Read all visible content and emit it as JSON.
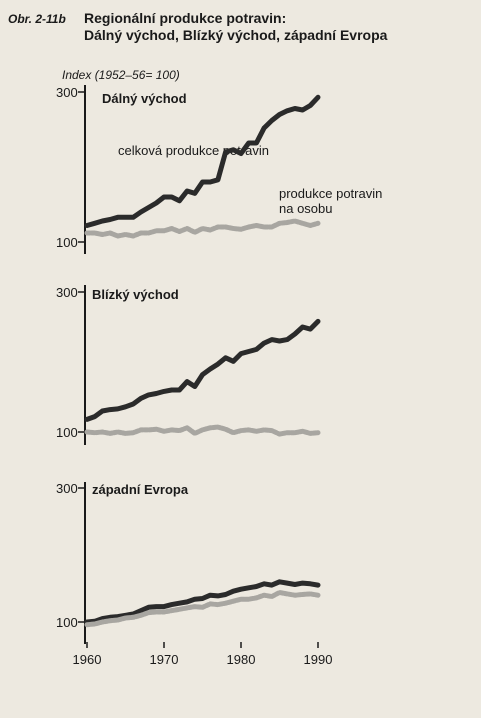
{
  "figure": {
    "label": "Obr. 2-11b",
    "title_line1": "Regionální produkce potravin:",
    "title_line2": "Dálný východ, Blízký východ, západní Evropa"
  },
  "chart_data": {
    "type": "line",
    "ylabel": "Index (1952–56= 100)",
    "x_ticks": [
      "1960",
      "1970",
      "1980",
      "1990"
    ],
    "x": [
      1960,
      1961,
      1962,
      1963,
      1964,
      1965,
      1966,
      1967,
      1968,
      1969,
      1970,
      1971,
      1972,
      1973,
      1974,
      1975,
      1976,
      1977,
      1978,
      1979,
      1980,
      1981,
      1982,
      1983,
      1984,
      1985,
      1986,
      1987,
      1988,
      1989,
      1990
    ],
    "xlim": [
      1960,
      1990
    ],
    "ylim": [
      100,
      300
    ],
    "yticks": [
      "300",
      "100"
    ],
    "colors": {
      "total": "#2b2b2b",
      "per_capita": "#a8a6a1"
    },
    "panels": [
      {
        "title": "Dálný východ",
        "annotation_total": "celková produkce potravin",
        "annotation_per_capita_line1": "produkce potravin",
        "annotation_per_capita_line2": "na osobu",
        "series": [
          {
            "name": "celková produkce potravin",
            "values": [
              122,
              125,
              128,
              130,
              133,
              133,
              133,
              140,
              146,
              152,
              160,
              160,
              155,
              168,
              165,
              180,
              180,
              183,
              220,
              223,
              218,
              232,
              232,
              252,
              262,
              270,
              275,
              278,
              276,
              282,
              293
            ]
          },
          {
            "name": "produkce potravin na osobu",
            "values": [
              112,
              112,
              110,
              112,
              108,
              110,
              108,
              112,
              112,
              115,
              115,
              118,
              114,
              118,
              113,
              118,
              116,
              120,
              120,
              118,
              117,
              120,
              122,
              120,
              120,
              125,
              126,
              128,
              125,
              122,
              125
            ]
          }
        ]
      },
      {
        "title": "Blízký východ",
        "series": [
          {
            "name": "celková produkce potravin",
            "values": [
              118,
              122,
              130,
              132,
              133,
              136,
              140,
              148,
              153,
              155,
              158,
              160,
              160,
              172,
              165,
              182,
              190,
              197,
              206,
              201,
              212,
              215,
              218,
              227,
              232,
              230,
              232,
              240,
              250,
              247,
              258
            ]
          },
          {
            "name": "produkce potravin na osobu",
            "values": [
              100,
              99,
              100,
              98,
              100,
              98,
              99,
              103,
              103,
              104,
              101,
              103,
              102,
              106,
              98,
              103,
              106,
              107,
              104,
              99,
              102,
              103,
              101,
              103,
              102,
              97,
              99,
              99,
              101,
              98,
              99
            ]
          }
        ]
      },
      {
        "title": "západní Evropa",
        "series": [
          {
            "name": "celková produkce potravin",
            "values": [
              100,
              101,
              105,
              107,
              108,
              110,
              112,
              117,
              122,
              123,
              123,
              126,
              128,
              130,
              134,
              135,
              140,
              139,
              141,
              146,
              149,
              151,
              153,
              157,
              155,
              160,
              158,
              156,
              158,
              157,
              155
            ]
          },
          {
            "name": "produkce potravin na osobu",
            "values": [
              96,
              97,
              100,
              102,
              103,
              106,
              107,
              110,
              114,
              115,
              115,
              117,
              119,
              121,
              123,
              122,
              127,
              126,
              128,
              131,
              134,
              134,
              136,
              140,
              138,
              144,
              142,
              140,
              141,
              142,
              140
            ]
          }
        ]
      }
    ]
  }
}
